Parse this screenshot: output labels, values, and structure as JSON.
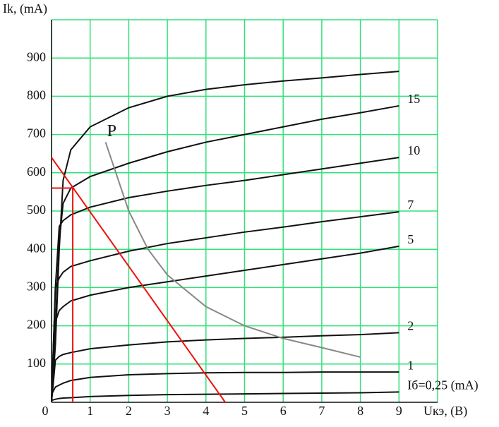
{
  "chart_data": {
    "type": "line",
    "y_label": "Ik, (mA)",
    "x_label": "Uкэ, (B)",
    "xlim": [
      0,
      10
    ],
    "ylim": [
      0,
      1000
    ],
    "xticks": [
      0,
      1,
      2,
      3,
      4,
      5,
      6,
      7,
      8,
      9
    ],
    "yticks": [
      100,
      200,
      300,
      400,
      500,
      600,
      700,
      800,
      900
    ],
    "grid": true,
    "grid_color": "#33e07a",
    "x": [
      0,
      0.1,
      0.2,
      0.3,
      0.5,
      1,
      2,
      3,
      4,
      5,
      6,
      7,
      8,
      9
    ],
    "series": [
      {
        "color": "#111111",
        "values": [
          0,
          150,
          400,
          580,
          660,
          720,
          770,
          800,
          818,
          830,
          840,
          848,
          857,
          865
        ]
      },
      {
        "name": "15",
        "color": "#111111",
        "values": [
          0,
          200,
          420,
          520,
          560,
          590,
          625,
          655,
          680,
          700,
          720,
          740,
          757,
          775
        ]
      },
      {
        "name": "10",
        "color": "#111111",
        "values": [
          0,
          300,
          460,
          475,
          490,
          510,
          535,
          552,
          567,
          580,
          595,
          610,
          625,
          640
        ]
      },
      {
        "name": "7",
        "color": "#111111",
        "values": [
          0,
          300,
          325,
          340,
          355,
          370,
          395,
          415,
          430,
          445,
          458,
          472,
          485,
          498
        ]
      },
      {
        "name": "5",
        "color": "#111111",
        "values": [
          0,
          210,
          240,
          250,
          265,
          280,
          300,
          315,
          330,
          345,
          360,
          375,
          390,
          408
        ]
      },
      {
        "name": "2",
        "color": "#111111",
        "values": [
          0,
          110,
          120,
          125,
          130,
          140,
          150,
          158,
          163,
          167,
          170,
          174,
          177,
          182
        ]
      },
      {
        "name": "1",
        "color": "#111111",
        "values": [
          20,
          40,
          45,
          50,
          57,
          65,
          72,
          75,
          77,
          78,
          78,
          79,
          79,
          79
        ]
      },
      {
        "name": "Iб=0,25 (mA)",
        "color": "#111111",
        "values": [
          5,
          8,
          10,
          11,
          12,
          15,
          18,
          20,
          21,
          22,
          23,
          24,
          25,
          27
        ]
      }
    ],
    "power_curve": {
      "name": "P",
      "color": "#888888",
      "x": [
        1.4,
        2,
        2.5,
        3,
        4,
        5,
        6,
        7,
        8
      ],
      "values": [
        680,
        500,
        400,
        333,
        250,
        200,
        167,
        143,
        118
      ]
    },
    "load_line": {
      "color": "#ee1111",
      "x": [
        0,
        4.5
      ],
      "values": [
        640,
        0
      ]
    },
    "operating_point": {
      "color": "#ee1111",
      "x": [
        0,
        0.55,
        0.55
      ],
      "values": [
        560,
        560,
        0
      ]
    }
  }
}
